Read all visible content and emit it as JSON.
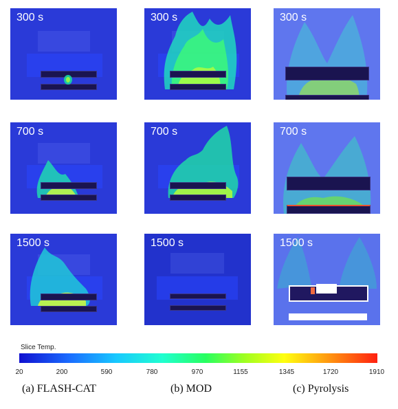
{
  "panels": {
    "col_a": [
      "300 s",
      "700 s",
      "1500 s"
    ],
    "col_b": [
      "300 s",
      "700 s",
      "1500 s"
    ],
    "col_c": [
      "300 s",
      "700 s",
      "1500 s"
    ]
  },
  "colorbar": {
    "title": "Slice Temp.",
    "ticks": [
      "20",
      "200",
      "590",
      "780",
      "970",
      "1155",
      "1345",
      "1720",
      "1910"
    ]
  },
  "captions": [
    "(a)  FLASH-CAT",
    "(b)  MOD",
    "(c)  Pyrolysis"
  ]
}
